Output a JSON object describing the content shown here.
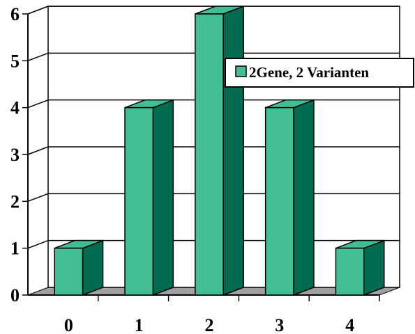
{
  "chart_data": {
    "type": "bar",
    "categories": [
      "0",
      "1",
      "2",
      "3",
      "4"
    ],
    "series": [
      {
        "name": "2Gene, 2 Varianten",
        "values": [
          1,
          4,
          6,
          4,
          1
        ]
      }
    ],
    "ylim": [
      0,
      6
    ],
    "yticks": [
      "0",
      "1",
      "2",
      "3",
      "4",
      "5",
      "6"
    ],
    "grid": true,
    "legend_position": "right",
    "style": "3d-bar",
    "colors": {
      "bar_front": "#43BD94",
      "bar_side": "#006B4F",
      "bar_top": "#43BD94",
      "floor": "#A0A0A0",
      "grid": "#000000"
    }
  }
}
